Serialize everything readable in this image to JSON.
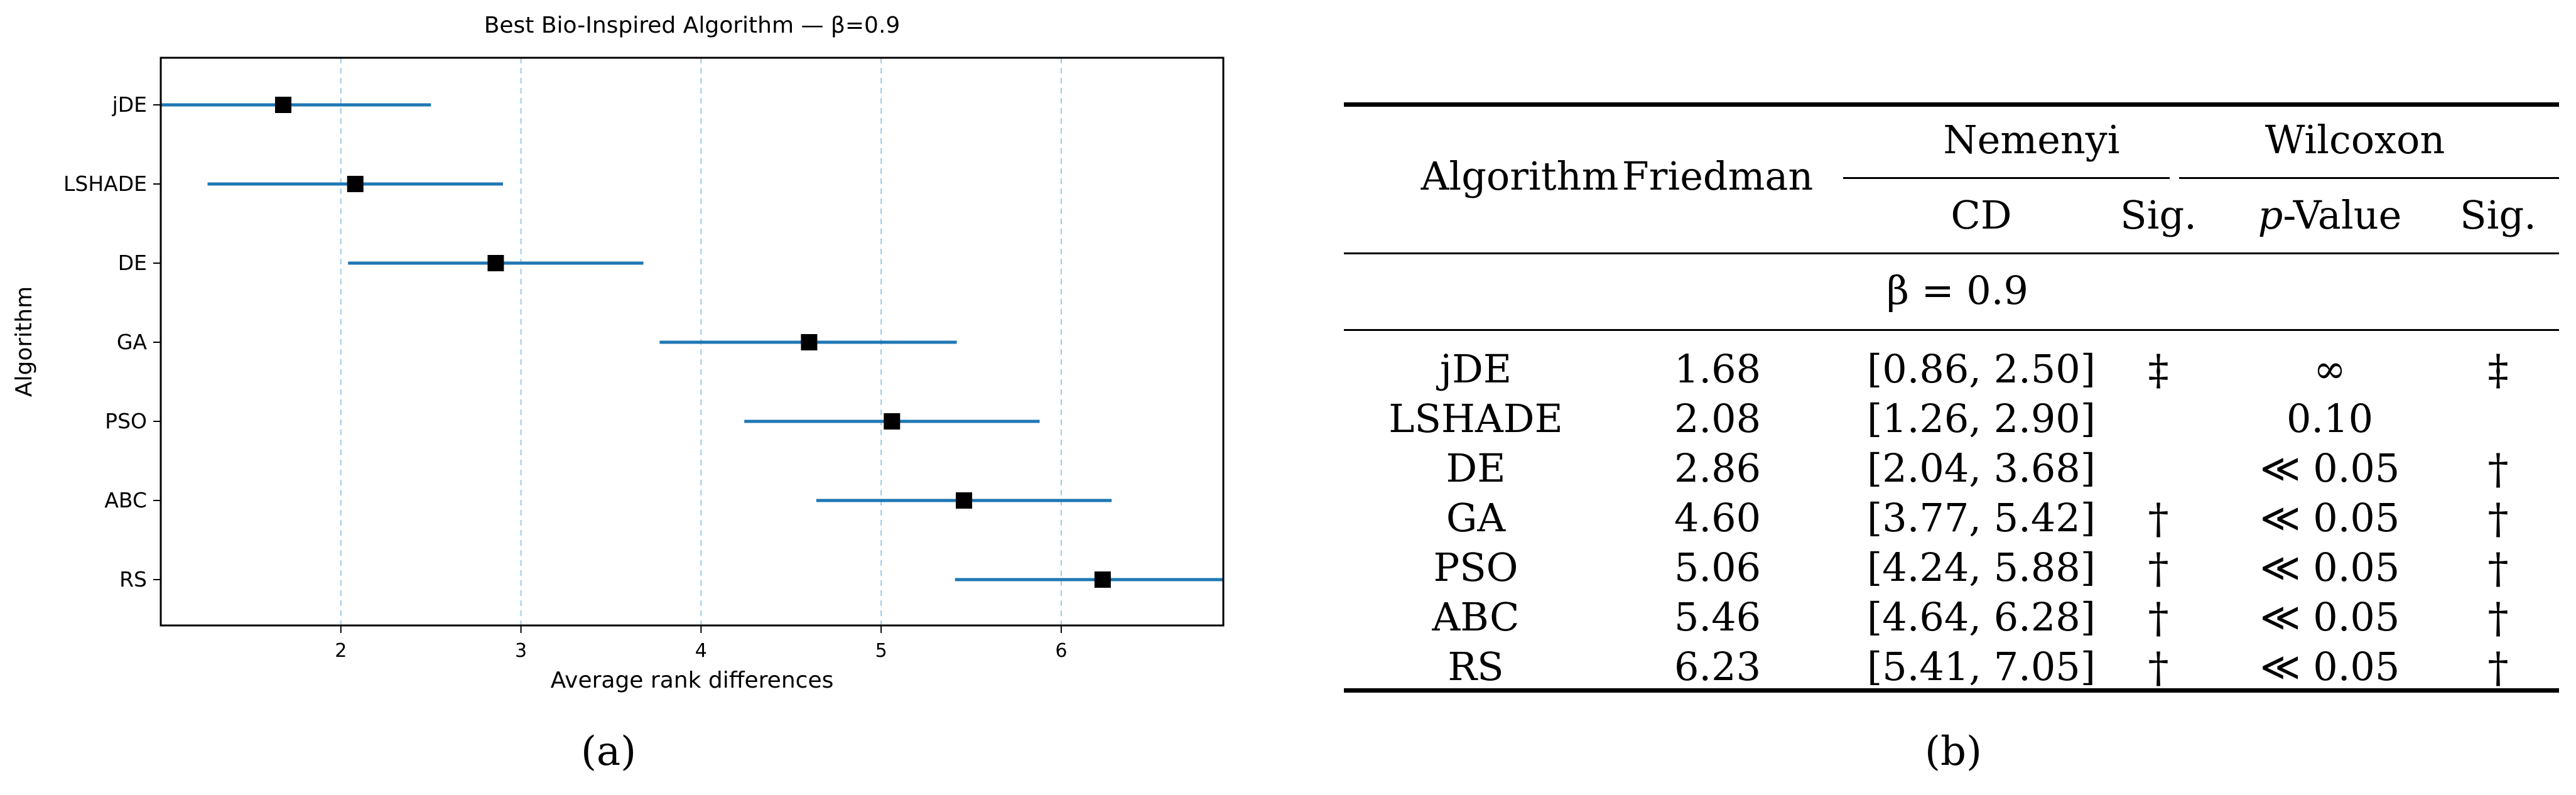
{
  "chart_data": {
    "type": "forest",
    "title": "Best Bio-Inspired Algorithm — β=0.9",
    "xlabel": "Average rank differences",
    "ylabel": "Algorithm",
    "xlim": [
      1.0,
      6.9
    ],
    "xticks": [
      2,
      3,
      4,
      5,
      6
    ],
    "grid": "vertical dashed at x ticks",
    "series_color": "#1f77b4",
    "marker_color": "#000000",
    "rows": [
      {
        "label": "jDE",
        "mean": 1.68,
        "lo": 0.86,
        "hi": 2.5
      },
      {
        "label": "LSHADE",
        "mean": 2.08,
        "lo": 1.26,
        "hi": 2.9
      },
      {
        "label": "DE",
        "mean": 2.86,
        "lo": 2.04,
        "hi": 3.68
      },
      {
        "label": "GA",
        "mean": 4.6,
        "lo": 3.77,
        "hi": 5.42
      },
      {
        "label": "PSO",
        "mean": 5.06,
        "lo": 4.24,
        "hi": 5.88
      },
      {
        "label": "ABC",
        "mean": 5.46,
        "lo": 4.64,
        "hi": 6.28
      },
      {
        "label": "RS",
        "mean": 6.23,
        "lo": 5.41,
        "hi": 7.05
      }
    ]
  },
  "captions": {
    "a": "(a)",
    "b": "(b)"
  },
  "table": {
    "headers": {
      "algorithm": "Algorithm",
      "friedman": "Friedman",
      "nemenyi": "Nemenyi",
      "wilcoxon": "Wilcoxon",
      "cd": "CD",
      "sig1": "Sig.",
      "pvalue_p": "p",
      "pvalue_rest": "-Value",
      "sig2": "Sig."
    },
    "group_label": "β = 0.9",
    "rows": [
      {
        "algorithm": "jDE",
        "friedman": "1.68",
        "cd": "[0.86, 2.50]",
        "sig1": "‡",
        "pvalue": "∞",
        "sig2": "‡"
      },
      {
        "algorithm": "LSHADE",
        "friedman": "2.08",
        "cd": "[1.26, 2.90]",
        "sig1": "",
        "pvalue": "0.10",
        "sig2": ""
      },
      {
        "algorithm": "DE",
        "friedman": "2.86",
        "cd": "[2.04, 3.68]",
        "sig1": "",
        "pvalue": "≪ 0.05",
        "sig2": "†"
      },
      {
        "algorithm": "GA",
        "friedman": "4.60",
        "cd": "[3.77, 5.42]",
        "sig1": "†",
        "pvalue": "≪ 0.05",
        "sig2": "†"
      },
      {
        "algorithm": "PSO",
        "friedman": "5.06",
        "cd": "[4.24, 5.88]",
        "sig1": "†",
        "pvalue": "≪ 0.05",
        "sig2": "†"
      },
      {
        "algorithm": "ABC",
        "friedman": "5.46",
        "cd": "[4.64, 6.28]",
        "sig1": "†",
        "pvalue": "≪ 0.05",
        "sig2": "†"
      },
      {
        "algorithm": "RS",
        "friedman": "6.23",
        "cd": "[5.41, 7.05]",
        "sig1": "†",
        "pvalue": "≪ 0.05",
        "sig2": "†"
      }
    ]
  }
}
